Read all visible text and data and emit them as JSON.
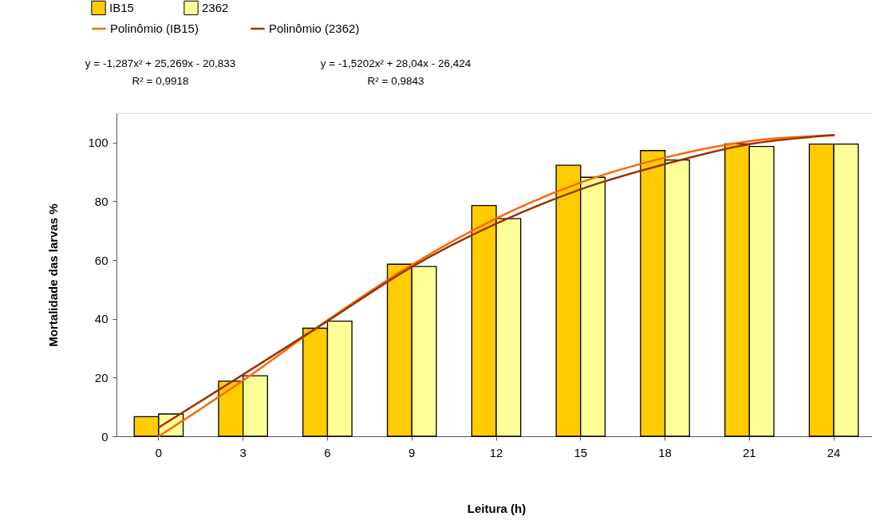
{
  "chart_data": {
    "type": "bar",
    "xlabel": "Leitura (h)",
    "ylabel": "Mortalidade das larvas %",
    "categories": [
      "0",
      "3",
      "6",
      "9",
      "12",
      "15",
      "18",
      "21",
      "24"
    ],
    "series": [
      {
        "name": "IB15",
        "color": "#ffcc00",
        "values": [
          6.7,
          18.8,
          36.8,
          58.6,
          78.6,
          92.3,
          97.3,
          99.6,
          99.5
        ]
      },
      {
        "name": "2362",
        "color": "#ffff99",
        "values": [
          7.6,
          20.6,
          39.2,
          57.8,
          74.1,
          88.2,
          94.1,
          98.7,
          99.5
        ]
      },
      {
        "name": "Polinômio (IB15)",
        "type": "line",
        "color": "#ff6600",
        "values": [
          0,
          19,
          39.5,
          58.4,
          74.2,
          86.4,
          94.9,
          100.5,
          102.5
        ]
      },
      {
        "name": "Polinômio (2362)",
        "type": "line",
        "color": "#993300",
        "values": [
          3,
          21,
          39.2,
          57.7,
          72.4,
          84.1,
          92.7,
          99.5,
          102.5
        ]
      }
    ],
    "ylim": [
      0,
      110
    ],
    "yticks": [
      0,
      20,
      40,
      60,
      80,
      100
    ],
    "grid": false,
    "legend": "top left",
    "marker": "none",
    "line_style": "solid",
    "annotations": [
      "y = -1,287x² + 25,269x - 20,833",
      "R² = 0,9918",
      "y = -1,5202x² + 28,04x - 26,424",
      "R² = 0,9843"
    ]
  }
}
